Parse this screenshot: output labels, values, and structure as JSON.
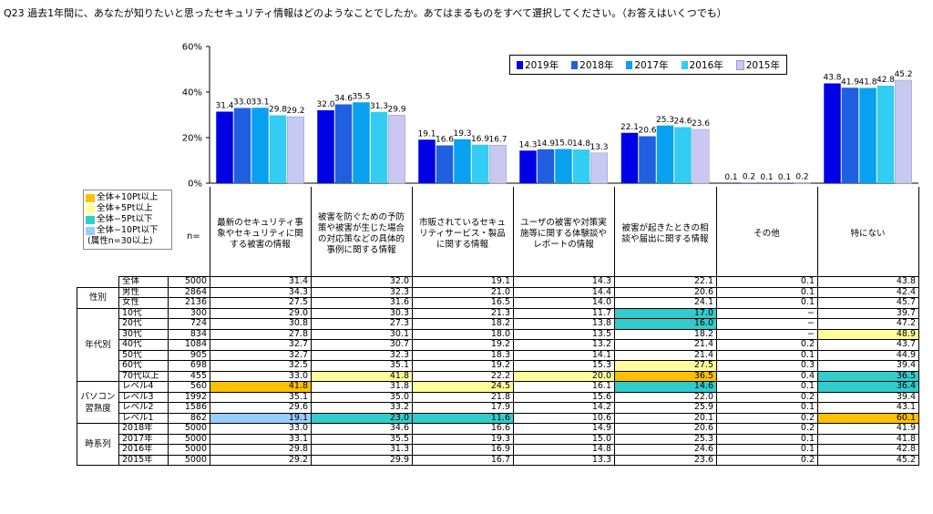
{
  "question": "Q23 過去1年間に、あなたが知りたいと思ったセキュリティ情報はどのようなことでしたか。あてはまるものをすべて選択してください。（お答えはいくつでも）",
  "highlight_legend": [
    {
      "label": "全体+10Pt以上",
      "color": "#ffc000"
    },
    {
      "label": "全体+5Pt以上",
      "color": "#ffff99"
    },
    {
      "label": "全体−5Pt以下",
      "color": "#33cccc"
    },
    {
      "label": "全体−10Pt以下",
      "color": "#99ccff"
    },
    {
      "label": "(属性n=30以上)",
      "color": ""
    }
  ],
  "n_label": "n=",
  "chart_data": {
    "type": "bar",
    "categories": [
      "最新のセキュリティ事象やセキュリティに関する被害の情報",
      "被害を防ぐための予防策や被害が生じた場合の対応策などの具体的事例に関する情報",
      "市販されているセキュリティサービス・製品に関する情報",
      "ユーザの被害や対策実施等に関する体験談やレポートの情報",
      "被害が起きたときの相談や届出に関する情報",
      "その他",
      "特にない"
    ],
    "series": [
      {
        "name": "2019年",
        "color": "#0000e6",
        "values": [
          31.4,
          32.0,
          19.1,
          14.3,
          22.1,
          0.1,
          43.8
        ]
      },
      {
        "name": "2018年",
        "color": "#1f5fe0",
        "values": [
          33.0,
          34.6,
          16.6,
          14.9,
          20.6,
          0.2,
          41.9
        ]
      },
      {
        "name": "2017年",
        "color": "#0aa0f0",
        "values": [
          33.1,
          35.5,
          19.3,
          15.0,
          25.3,
          0.1,
          41.8
        ]
      },
      {
        "name": "2016年",
        "color": "#33ccf2",
        "values": [
          29.8,
          31.3,
          16.9,
          14.8,
          24.6,
          0.1,
          42.8
        ]
      },
      {
        "name": "2015年",
        "color": "#c8c8f0",
        "values": [
          29.2,
          29.9,
          16.7,
          13.3,
          23.6,
          0.2,
          45.2
        ]
      }
    ],
    "y_ticks": [
      "0%",
      "20%",
      "40%",
      "60%"
    ],
    "ylim": [
      0,
      60
    ],
    "grid": false,
    "legend_position": "top-right"
  },
  "table": {
    "groups": [
      {
        "label": "",
        "rows": [
          {
            "name": "全体",
            "n": "5000",
            "vals": [
              "31.4",
              "32.0",
              "19.1",
              "14.3",
              "22.1",
              "0.1",
              "43.8"
            ],
            "hl": [
              "",
              "",
              "",
              "",
              "",
              "",
              ""
            ]
          }
        ]
      },
      {
        "label": "性別",
        "rows": [
          {
            "name": "男性",
            "n": "2864",
            "vals": [
              "34.3",
              "32.3",
              "21.0",
              "14.4",
              "20.6",
              "0.1",
              "42.4"
            ],
            "hl": [
              "",
              "",
              "",
              "",
              "",
              "",
              ""
            ]
          },
          {
            "name": "女性",
            "n": "2136",
            "vals": [
              "27.5",
              "31.6",
              "16.5",
              "14.0",
              "24.1",
              "0.1",
              "45.7"
            ],
            "hl": [
              "",
              "",
              "",
              "",
              "",
              "",
              ""
            ]
          }
        ]
      },
      {
        "label": "年代別",
        "rows": [
          {
            "name": "10代",
            "n": "300",
            "vals": [
              "29.0",
              "30.3",
              "21.3",
              "11.7",
              "17.0",
              "−",
              "39.7"
            ],
            "hl": [
              "",
              "",
              "",
              "",
              "c",
              "",
              ""
            ]
          },
          {
            "name": "20代",
            "n": "724",
            "vals": [
              "30.8",
              "27.3",
              "18.2",
              "13.8",
              "16.0",
              "−",
              "47.2"
            ],
            "hl": [
              "",
              "",
              "",
              "",
              "c",
              "",
              ""
            ]
          },
          {
            "name": "30代",
            "n": "834",
            "vals": [
              "27.8",
              "30.1",
              "18.0",
              "13.5",
              "18.2",
              "−",
              "48.9"
            ],
            "hl": [
              "",
              "",
              "",
              "",
              "",
              "",
              "y"
            ]
          },
          {
            "name": "40代",
            "n": "1084",
            "vals": [
              "32.7",
              "30.7",
              "19.2",
              "13.2",
              "21.4",
              "0.2",
              "43.7"
            ],
            "hl": [
              "",
              "",
              "",
              "",
              "",
              "",
              ""
            ]
          },
          {
            "name": "50代",
            "n": "905",
            "vals": [
              "32.7",
              "32.3",
              "18.3",
              "14.1",
              "21.4",
              "0.1",
              "44.9"
            ],
            "hl": [
              "",
              "",
              "",
              "",
              "",
              "",
              ""
            ]
          },
          {
            "name": "60代",
            "n": "698",
            "vals": [
              "32.5",
              "35.1",
              "19.2",
              "15.3",
              "27.5",
              "0.3",
              "39.4"
            ],
            "hl": [
              "",
              "",
              "",
              "",
              "y",
              "",
              ""
            ]
          },
          {
            "name": "70代以上",
            "n": "455",
            "vals": [
              "33.0",
              "41.8",
              "22.2",
              "20.0",
              "36.5",
              "0.4",
              "36.5"
            ],
            "hl": [
              "",
              "y",
              "",
              "y",
              "o",
              "",
              "c"
            ]
          }
        ]
      },
      {
        "label": "パソコン習熟度",
        "rows": [
          {
            "name": "レベル4",
            "n": "560",
            "vals": [
              "41.8",
              "31.8",
              "24.5",
              "16.1",
              "14.6",
              "0.1",
              "36.4"
            ],
            "hl": [
              "o",
              "",
              "y",
              "",
              "c",
              "",
              "c"
            ]
          },
          {
            "name": "レベル3",
            "n": "1992",
            "vals": [
              "35.1",
              "35.0",
              "21.8",
              "15.6",
              "22.0",
              "0.2",
              "39.4"
            ],
            "hl": [
              "",
              "",
              "",
              "",
              "",
              "",
              ""
            ]
          },
          {
            "name": "レベル2",
            "n": "1586",
            "vals": [
              "29.6",
              "33.2",
              "17.9",
              "14.2",
              "25.9",
              "0.1",
              "43.1"
            ],
            "hl": [
              "",
              "",
              "",
              "",
              "",
              "",
              ""
            ]
          },
          {
            "name": "レベル1",
            "n": "862",
            "vals": [
              "19.1",
              "23.0",
              "11.6",
              "10.6",
              "20.1",
              "0.2",
              "60.1"
            ],
            "hl": [
              "b",
              "c",
              "c",
              "",
              "",
              "",
              "o"
            ]
          }
        ]
      },
      {
        "label": "時系列",
        "rows": [
          {
            "name": "2018年",
            "n": "5000",
            "vals": [
              "33.0",
              "34.6",
              "16.6",
              "14.9",
              "20.6",
              "0.2",
              "41.9"
            ],
            "hl": [
              "",
              "",
              "",
              "",
              "",
              "",
              ""
            ]
          },
          {
            "name": "2017年",
            "n": "5000",
            "vals": [
              "33.1",
              "35.5",
              "19.3",
              "15.0",
              "25.3",
              "0.1",
              "41.8"
            ],
            "hl": [
              "",
              "",
              "",
              "",
              "",
              "",
              ""
            ]
          },
          {
            "name": "2016年",
            "n": "5000",
            "vals": [
              "29.8",
              "31.3",
              "16.9",
              "14.8",
              "24.6",
              "0.1",
              "42.8"
            ],
            "hl": [
              "",
              "",
              "",
              "",
              "",
              "",
              ""
            ]
          },
          {
            "name": "2015年",
            "n": "5000",
            "vals": [
              "29.2",
              "29.9",
              "16.7",
              "13.3",
              "23.6",
              "0.2",
              "45.2"
            ],
            "hl": [
              "",
              "",
              "",
              "",
              "",
              "",
              ""
            ]
          }
        ]
      }
    ],
    "highlight_colors": {
      "o": "#ffc000",
      "y": "#ffff99",
      "c": "#33cccc",
      "b": "#99ccff"
    }
  }
}
